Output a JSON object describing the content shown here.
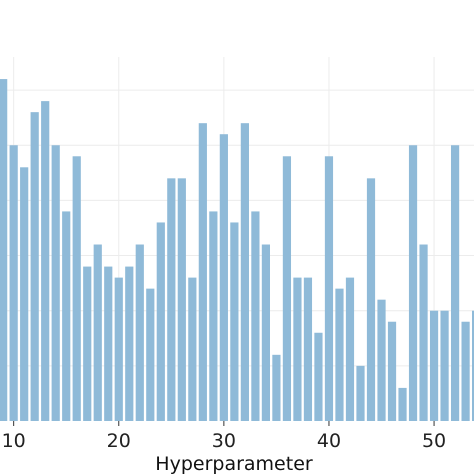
{
  "chart_data": {
    "type": "bar",
    "xlabel": "Hyperparameter",
    "ylabel": "",
    "title": "",
    "x_ticks": [
      10,
      20,
      30,
      40,
      50
    ],
    "xlim": [
      8.7,
      53.8
    ],
    "ylim": [
      0,
      33
    ],
    "grid": true,
    "bar_color": "#8fbad8",
    "x": [
      9,
      10,
      11,
      12,
      13,
      14,
      15,
      16,
      17,
      18,
      19,
      20,
      21,
      22,
      23,
      24,
      25,
      26,
      27,
      28,
      29,
      30,
      31,
      32,
      33,
      34,
      35,
      36,
      37,
      38,
      39,
      40,
      41,
      42,
      43,
      44,
      45,
      46,
      47,
      48,
      49,
      50,
      51,
      52,
      53,
      54
    ],
    "values": [
      31,
      25,
      23,
      28,
      29,
      25,
      19,
      24,
      14,
      16,
      14,
      13,
      14,
      16,
      12,
      18,
      22,
      22,
      13,
      27,
      19,
      26,
      18,
      27,
      19,
      16,
      6,
      24,
      13,
      13,
      8,
      24,
      12,
      13,
      5,
      22,
      11,
      9,
      3,
      25,
      16,
      10,
      10,
      25,
      9,
      10
    ]
  }
}
